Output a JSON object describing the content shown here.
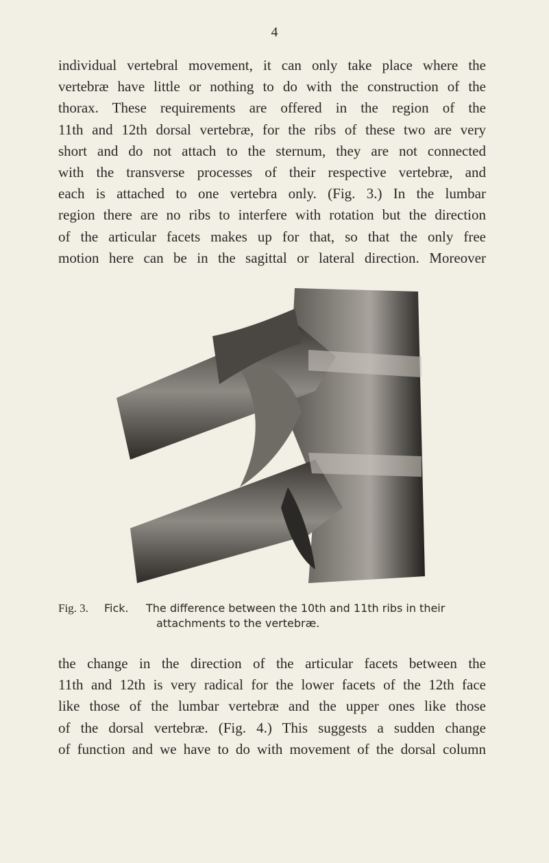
{
  "page_number": "4",
  "paragraph_1": [
    "individual vertebral movement, it can only take place where the",
    "vertebræ have little or nothing to do with the construction of the",
    "thorax. These requirements are offered in the region of the",
    "11th and 12th dorsal vertebræ, for the ribs of these two are very",
    "short and do not attach to the sternum, they are not connected",
    "with the transverse processes of their respective vertebræ, and",
    "each is attached to one vertebra only. (Fig. 3.) In the lumbar",
    "region there are no ribs to interfere with rotation but the direction",
    "of the articular facets makes up for that, so that the only free",
    "motion here can be in the sagittal or lateral direction. Moreover"
  ],
  "figure": {
    "label": "Fig. 3.",
    "author": "Fick.",
    "caption": [
      "The difference between the 10th and 11th ribs in their",
      "attachments to the vertebræ."
    ]
  },
  "paragraph_2": [
    "the change in the direction of the articular facets between the",
    "11th and 12th is very radical for the lower facets of the 12th face",
    "like those of the lumbar vertebræ and the upper ones like those",
    "of the dorsal vertebræ. (Fig. 4.) This suggests a sudden change",
    "of function and we have to do with movement of the dorsal column"
  ]
}
